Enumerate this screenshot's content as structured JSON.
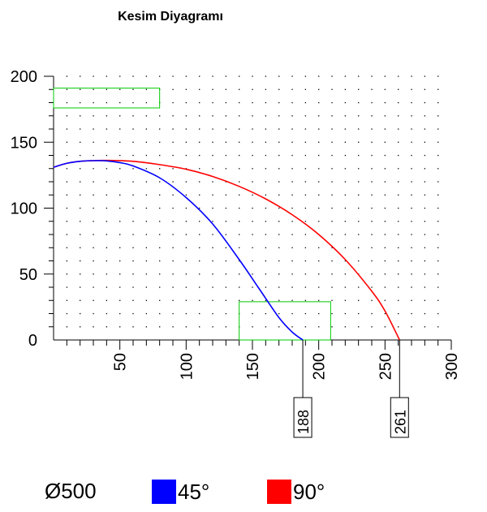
{
  "chart_data": {
    "type": "line",
    "title": "Kesim Diyagramı",
    "xlabel": "",
    "ylabel": "",
    "xlim": [
      0,
      300
    ],
    "ylim": [
      0,
      200
    ],
    "x_ticks": [
      50,
      100,
      150,
      200,
      250,
      300
    ],
    "y_ticks": [
      0,
      50,
      100,
      150,
      200
    ],
    "grid": "dotted",
    "series": [
      {
        "name": "45°",
        "color": "#0000ff",
        "x": [
          0,
          10,
          20,
          30,
          40,
          50,
          60,
          80,
          100,
          120,
          140,
          155,
          170,
          180,
          188
        ],
        "y": [
          131,
          134,
          135.5,
          136,
          135.8,
          134.5,
          132,
          123,
          108,
          88,
          61,
          39,
          17,
          6,
          0
        ]
      },
      {
        "name": "90°",
        "color": "#ff0000",
        "x": [
          0,
          10,
          20,
          30,
          40,
          60,
          80,
          100,
          120,
          140,
          160,
          180,
          200,
          220,
          240,
          250,
          261
        ],
        "y": [
          131,
          134,
          135.5,
          136,
          136.2,
          135.5,
          133,
          129.5,
          124,
          116.5,
          107,
          95,
          80,
          61,
          37,
          22,
          0
        ]
      }
    ],
    "markers": [
      {
        "label": "188",
        "x": 188
      },
      {
        "label": "261",
        "x": 261
      }
    ],
    "boxes": [
      {
        "color": "#00cc00",
        "x": [
          0,
          80
        ],
        "y": [
          176,
          191
        ]
      },
      {
        "color": "#00cc00",
        "x": [
          140,
          209
        ],
        "y": [
          0,
          29
        ]
      }
    ],
    "legend": {
      "diameter": "Ø500",
      "items": [
        {
          "label": "45°",
          "color": "#0000ff"
        },
        {
          "label": "90°",
          "color": "#ff0000"
        }
      ],
      "placement": "bottom"
    }
  }
}
